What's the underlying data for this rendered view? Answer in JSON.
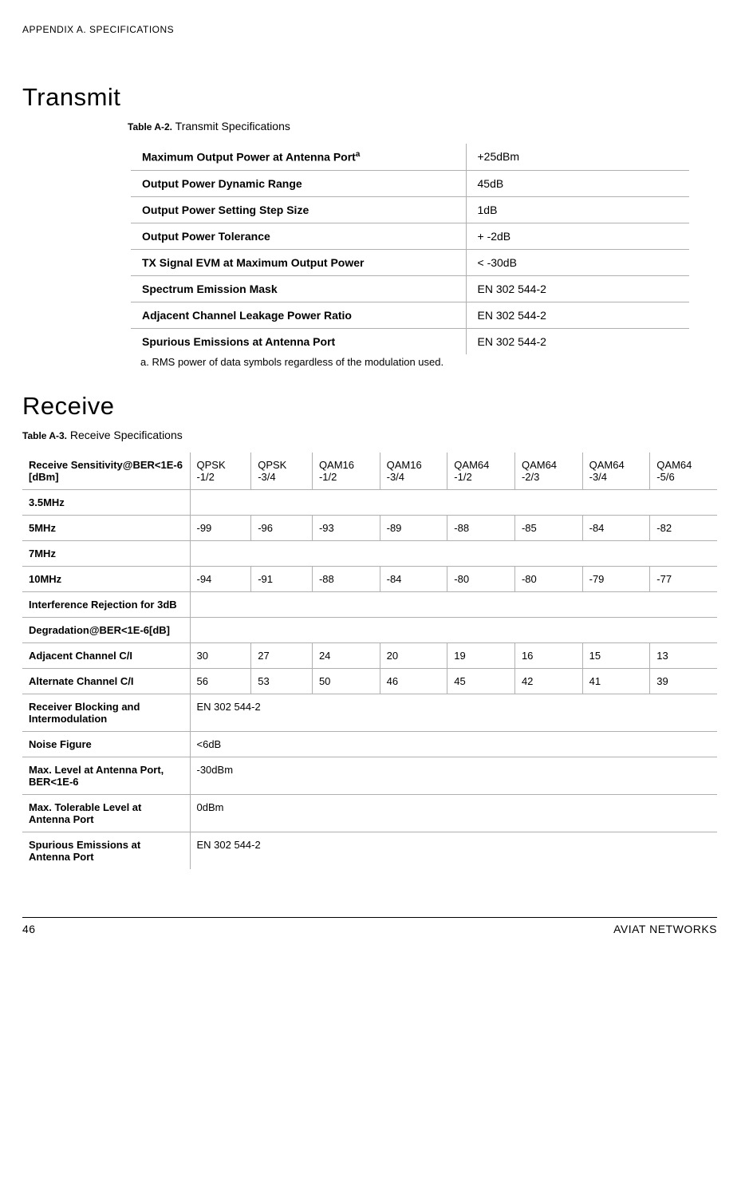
{
  "header": {
    "appendix_label": "APPENDIX A. SPECIFICATIONS"
  },
  "transmit": {
    "section_title": "Transmit",
    "caption_prefix": "Table A-2.",
    "caption_text": "Transmit Specifications",
    "footnote_superscript": "a",
    "rows": {
      "max_out_label": "Maximum Output Power at Antenna Port",
      "max_out_value": "+25dBm",
      "dyn_range_label": "Output Power Dynamic Range",
      "dyn_range_value": "45dB",
      "step_size_label": "Output Power Setting Step Size",
      "step_size_value": "1dB",
      "tolerance_label": "Output Power Tolerance",
      "tolerance_value": "+ -2dB",
      "evm_label": "TX Signal EVM at Maximum Output Power",
      "evm_value": "< -30dB",
      "mask_label": "Spectrum Emission Mask",
      "mask_value": "EN 302 544-2",
      "aclr_label": "Adjacent Channel Leakage Power Ratio",
      "aclr_value": "EN 302 544-2",
      "spur_label": "Spurious Emissions at Antenna Port",
      "spur_value": "EN 302 544-2"
    },
    "footnote": "a.  RMS power of data symbols regardless of the modulation used."
  },
  "receive": {
    "section_title": "Receive",
    "caption_prefix": "Table A-3.",
    "caption_text": "Receive Specifications",
    "header_cells": {
      "c0": "Receive Sensitivity@BER<1E-6 [dBm]",
      "c1": "QPSK -1/2",
      "c2": "QPSK -3/4",
      "c3": "QAM16 -1/2",
      "c4": "QAM16 -3/4",
      "c5": "QAM64 -1/2",
      "c6": "QAM64 -2/3",
      "c7": "QAM64 -3/4",
      "c8": "QAM64 -5/6"
    },
    "rows": {
      "bw35_label": "3.5MHz",
      "bw5_label": "5MHz",
      "bw5": {
        "c1": "-99",
        "c2": "-96",
        "c3": "-93",
        "c4": "-89",
        "c5": "-88",
        "c6": "-85",
        "c7": "-84",
        "c8": "-82"
      },
      "bw7_label": "7MHz",
      "bw10_label": "10MHz",
      "bw10": {
        "c1": "-94",
        "c2": "-91",
        "c3": "-88",
        "c4": "-84",
        "c5": "-80",
        "c6": "-80",
        "c7": "-79",
        "c8": "-77"
      },
      "interf_label": "Interference Rejection for 3dB",
      "degrad_label": "Degradation@BER<1E-6[dB]",
      "adj_label": "Adjacent Channel C/I",
      "adj": {
        "c1": "30",
        "c2": "27",
        "c3": "24",
        "c4": "20",
        "c5": "19",
        "c6": "16",
        "c7": "15",
        "c8": "13"
      },
      "alt_label": "Alternate Channel C/I",
      "alt": {
        "c1": "56",
        "c2": "53",
        "c3": "50",
        "c4": "46",
        "c5": "45",
        "c6": "42",
        "c7": "41",
        "c8": "39"
      },
      "block_label": "Receiver Blocking and Intermodulation",
      "block_value": "EN 302 544-2",
      "nf_label": "Noise Figure",
      "nf_value": "<6dB",
      "maxlevel_label": "Max. Level at Antenna Port, BER<1E-6",
      "maxlevel_value": "-30dBm",
      "maxtol_label": "Max. Tolerable Level at Antenna Port",
      "maxtol_value": "0dBm",
      "spurrx_label": "Spurious Emissions at Antenna Port",
      "spurrx_value": "EN 302 544-2"
    }
  },
  "footer": {
    "page_number": "46",
    "company": "AVIAT NETWORKS"
  }
}
